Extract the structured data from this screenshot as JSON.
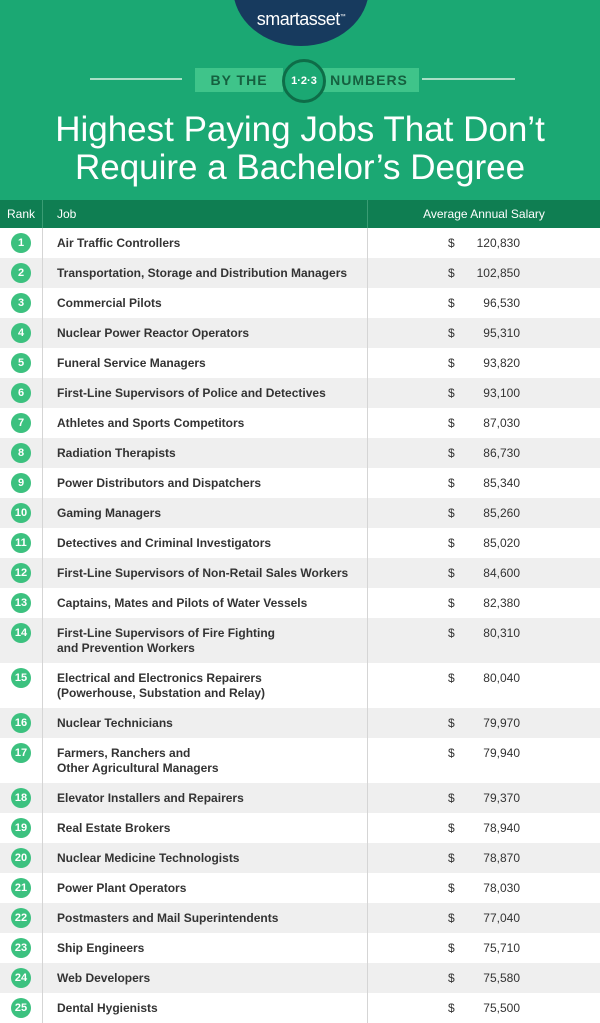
{
  "header": {
    "logo": "smartasset",
    "logo_mark": "™",
    "banner_left": "BY THE",
    "banner_badge": "1·2·3",
    "banner_right": "NUMBERS",
    "title_lines": [
      "Highest Paying Jobs That Don’t",
      "Require a Bachelor’s Degree"
    ]
  },
  "table": {
    "columns": [
      "Rank",
      "Job",
      "Average Annual Salary"
    ],
    "rows": [
      [
        1,
        "Air Traffic Controllers",
        "$",
        "120,830"
      ],
      [
        2,
        "Transportation, Storage and Distribution Managers",
        "$",
        "102,850"
      ],
      [
        3,
        "Commercial Pilots",
        "$",
        "96,530"
      ],
      [
        4,
        "Nuclear Power Reactor Operators",
        "$",
        "95,310"
      ],
      [
        5,
        "Funeral Service Managers",
        "$",
        "93,820"
      ],
      [
        6,
        "First-Line Supervisors of Police and Detectives",
        "$",
        "93,100"
      ],
      [
        7,
        "Athletes and Sports Competitors",
        "$",
        "87,030"
      ],
      [
        8,
        "Radiation Therapists",
        "$",
        "86,730"
      ],
      [
        9,
        "Power Distributors and Dispatchers",
        "$",
        "85,340"
      ],
      [
        10,
        "Gaming Managers",
        "$",
        "85,260"
      ],
      [
        11,
        "Detectives and Criminal Investigators",
        "$",
        "85,020"
      ],
      [
        12,
        "First-Line Supervisors of Non-Retail Sales Workers",
        "$",
        "84,600"
      ],
      [
        13,
        "Captains, Mates and Pilots of Water Vessels",
        "$",
        "82,380"
      ],
      [
        14,
        "First-Line Supervisors of Fire Fighting\nand Prevention Workers",
        "$",
        "80,310"
      ],
      [
        15,
        "Electrical and Electronics Repairers\n(Powerhouse, Substation and Relay)",
        "$",
        "80,040"
      ],
      [
        16,
        "Nuclear Technicians",
        "$",
        "79,970"
      ],
      [
        17,
        "Farmers, Ranchers and\nOther Agricultural Managers",
        "$",
        "79,940"
      ],
      [
        18,
        "Elevator Installers and Repairers",
        "$",
        "79,370"
      ],
      [
        19,
        "Real Estate Brokers",
        "$",
        "78,940"
      ],
      [
        20,
        "Nuclear Medicine Technologists",
        "$",
        "78,870"
      ],
      [
        21,
        "Power Plant Operators",
        "$",
        "78,030"
      ],
      [
        22,
        "Postmasters and Mail Superintendents",
        "$",
        "77,040"
      ],
      [
        23,
        "Ship Engineers",
        "$",
        "75,710"
      ],
      [
        24,
        "Web Developers",
        "$",
        "75,580"
      ],
      [
        25,
        "Dental Hygienists",
        "$",
        "75,500"
      ]
    ]
  }
}
